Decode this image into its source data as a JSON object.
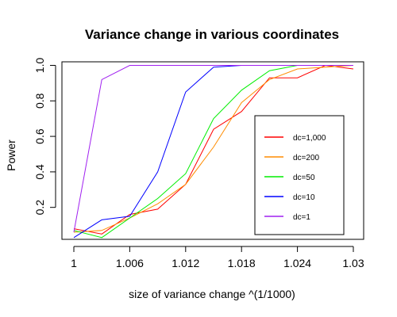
{
  "chart_data": {
    "type": "line",
    "title": "Variance change in various coordinates",
    "xlabel": "size of variance change ^(1/1000)",
    "ylabel": "Power",
    "xlim": [
      1.0,
      1.03
    ],
    "ylim": [
      0.02,
      1.02
    ],
    "x_ticks": [
      1.0,
      1.006,
      1.012,
      1.018,
      1.024,
      1.03
    ],
    "x_tick_labels": [
      "1",
      "1.006",
      "1.012",
      "1.018",
      "1.024",
      "1.03"
    ],
    "y_ticks": [
      0.2,
      0.4,
      0.6,
      0.8,
      1.0
    ],
    "y_tick_labels": [
      "0.2",
      "0.4",
      "0.6",
      "0.8",
      "1.0"
    ],
    "grid": false,
    "legend_position": "center-right",
    "x": [
      1.0,
      1.003,
      1.006,
      1.009,
      1.012,
      1.015,
      1.018,
      1.021,
      1.024,
      1.027,
      1.03
    ],
    "series": [
      {
        "name": "dc=1,000",
        "color": "#ff0000",
        "values": [
          0.08,
          0.05,
          0.16,
          0.19,
          0.33,
          0.64,
          0.74,
          0.93,
          0.93,
          1.0,
          0.98
        ]
      },
      {
        "name": "dc=200",
        "color": "#ff8c00",
        "values": [
          0.06,
          0.07,
          0.14,
          0.22,
          0.33,
          0.54,
          0.79,
          0.92,
          0.98,
          0.99,
          1.0
        ]
      },
      {
        "name": "dc=50",
        "color": "#00ee00",
        "values": [
          0.07,
          0.03,
          0.14,
          0.25,
          0.39,
          0.7,
          0.86,
          0.97,
          1.0,
          1.0,
          1.0
        ]
      },
      {
        "name": "dc=10",
        "color": "#0000ff",
        "values": [
          0.03,
          0.13,
          0.15,
          0.4,
          0.85,
          0.99,
          1.0,
          1.0,
          1.0,
          1.0,
          1.0
        ]
      },
      {
        "name": "dc=1",
        "color": "#a020f0",
        "values": [
          0.06,
          0.92,
          1.0,
          1.0,
          1.0,
          1.0,
          1.0,
          1.0,
          1.0,
          1.0,
          1.0
        ]
      }
    ]
  }
}
